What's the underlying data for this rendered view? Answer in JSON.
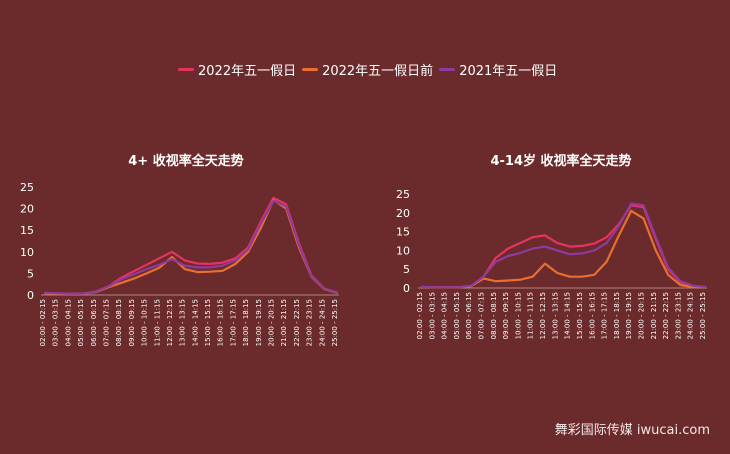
{
  "legend": [
    {
      "label": "2022年五一假日",
      "color": "#e6335f"
    },
    {
      "label": "2022年五一假日前",
      "color": "#e8702f"
    },
    {
      "label": "2021年五一假日",
      "color": "#8e3a9e"
    }
  ],
  "watermark": "舞彩国际传媒 iwucai.com",
  "chart_data": [
    {
      "type": "line",
      "title": "4+ 收视率全天走势",
      "ylim": [
        0,
        25
      ],
      "yticks": [
        0,
        5,
        10,
        15,
        20,
        25
      ],
      "categories": [
        "02:00 - 02:15",
        "03:00 - 03:15",
        "04:00 - 04:15",
        "05:00 - 05:15",
        "06:00 - 06:15",
        "07:00 - 07:15",
        "08:00 - 08:15",
        "09:00 - 09:15",
        "10:00 - 10:15",
        "11:00 - 11:15",
        "12:00 - 12:15",
        "13:00 - 13:15",
        "14:00 - 14:15",
        "15:00 - 15:15",
        "16:00 - 16:15",
        "17:00 - 17:15",
        "18:00 - 18:15",
        "19:00 - 19:15",
        "20:00 - 20:15",
        "21:00 - 21:15",
        "22:00 - 22:15",
        "23:00 - 23:15",
        "24:00 - 24:15",
        "25:00 - 25:15"
      ],
      "series": [
        {
          "name": "2022年五一假日",
          "color": "#e6335f",
          "values": [
            0.5,
            0.4,
            0.3,
            0.3,
            0.8,
            2.0,
            4.0,
            5.5,
            7.0,
            8.5,
            10.0,
            8.0,
            7.3,
            7.2,
            7.5,
            8.5,
            11.0,
            17.0,
            22.5,
            21.0,
            12.0,
            4.5,
            1.5,
            0.6
          ]
        },
        {
          "name": "2022年五一假日前",
          "color": "#e8702f",
          "values": [
            0.4,
            0.3,
            0.3,
            0.3,
            0.7,
            1.8,
            2.8,
            3.8,
            5.0,
            6.3,
            8.8,
            6.0,
            5.3,
            5.4,
            5.6,
            7.2,
            10.0,
            15.5,
            22.0,
            20.0,
            11.0,
            4.2,
            1.4,
            0.5
          ]
        },
        {
          "name": "2021年五一假日",
          "color": "#8e3a9e",
          "values": [
            0.5,
            0.4,
            0.3,
            0.3,
            0.8,
            2.0,
            3.6,
            4.8,
            6.0,
            7.0,
            8.3,
            6.8,
            6.4,
            6.4,
            6.8,
            8.0,
            10.5,
            16.5,
            21.8,
            20.5,
            11.5,
            4.3,
            1.5,
            0.6
          ]
        }
      ]
    },
    {
      "type": "line",
      "title": "4-14岁 收视率全天走势",
      "ylim": [
        0,
        25
      ],
      "yticks": [
        0,
        5,
        10,
        15,
        20,
        25
      ],
      "categories": [
        "02:00 - 02:15",
        "03:00 - 03:15",
        "04:00 - 04:15",
        "05:00 - 05:15",
        "06:00 - 06:15",
        "07:00 - 07:15",
        "08:00 - 08:15",
        "09:00 - 09:15",
        "10:00 - 10:15",
        "11:00 - 11:15",
        "12:00 - 12:15",
        "13:00 - 13:15",
        "14:00 - 14:15",
        "15:00 - 15:15",
        "16:00 - 16:15",
        "17:00 - 17:15",
        "18:00 - 18:15",
        "19:00 - 19:15",
        "20:00 - 20:15",
        "21:00 - 21:15",
        "22:00 - 22:15",
        "23:00 - 23:15",
        "24:00 - 24:15",
        "25:00 - 25:15"
      ],
      "series": [
        {
          "name": "2022年五一假日",
          "color": "#e6335f",
          "values": [
            0.3,
            0.2,
            0.2,
            0.2,
            0.5,
            3.0,
            8.0,
            10.5,
            12.0,
            13.5,
            14.0,
            12.0,
            11.0,
            11.2,
            11.8,
            13.5,
            17.0,
            22.0,
            21.5,
            13.0,
            5.0,
            1.5,
            0.5,
            0.3
          ]
        },
        {
          "name": "2022年五一假日前",
          "color": "#e8702f",
          "values": [
            0.2,
            0.2,
            0.2,
            0.2,
            0.5,
            2.5,
            1.8,
            2.0,
            2.2,
            3.0,
            6.5,
            4.0,
            3.0,
            3.0,
            3.5,
            7.0,
            14.0,
            20.5,
            18.5,
            10.0,
            3.5,
            0.8,
            0.3,
            0.2
          ]
        },
        {
          "name": "2021年五一假日",
          "color": "#8e3a9e",
          "values": [
            0.3,
            0.2,
            0.2,
            0.2,
            0.6,
            3.0,
            7.0,
            8.5,
            9.3,
            10.5,
            11.0,
            10.0,
            9.0,
            9.2,
            10.0,
            12.0,
            16.5,
            22.5,
            22.0,
            13.5,
            5.5,
            1.8,
            0.6,
            0.3
          ]
        }
      ]
    }
  ]
}
